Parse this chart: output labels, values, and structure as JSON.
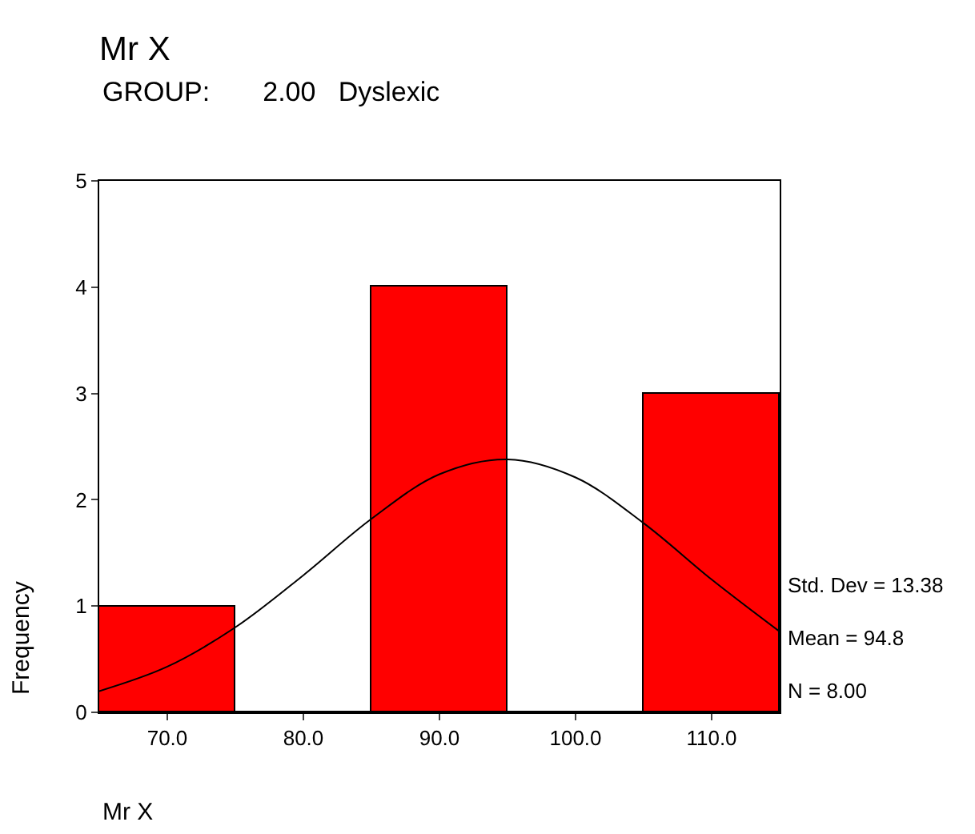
{
  "chart_data": {
    "type": "histogram",
    "title": "Mr X",
    "subtitle": "GROUP:       2.00   Dyslexic",
    "xlabel": "Mr X",
    "ylabel": "Frequency",
    "bins": [
      65,
      75,
      85,
      95,
      105,
      115
    ],
    "series": [
      {
        "color": "#ff0000",
        "values": [
          1,
          0,
          4,
          0,
          3
        ]
      },
      {
        "type": "line",
        "color": "#000000",
        "x": [
          65,
          70,
          75,
          80,
          85,
          90,
          95,
          100,
          105,
          110,
          115
        ],
        "values": [
          0.2,
          0.43,
          0.8,
          1.29,
          1.82,
          2.24,
          2.38,
          2.21,
          1.78,
          1.25,
          0.76
        ]
      }
    ],
    "xlim": [
      65,
      115
    ],
    "xticks": [
      {
        "value": 70,
        "label": "70.0"
      },
      {
        "value": 80,
        "label": "80.0"
      },
      {
        "value": 90,
        "label": "90.0"
      },
      {
        "value": 100,
        "label": "100.0"
      },
      {
        "value": 110,
        "label": "110.0"
      }
    ],
    "ylim": [
      0,
      5
    ],
    "yticks": [
      0,
      1,
      2,
      3,
      4,
      5
    ],
    "annotations": [
      "Std. Dev = 13.38",
      "Mean = 94.8",
      "N = 8.00"
    ],
    "marker": "none",
    "line_style": "solid"
  }
}
